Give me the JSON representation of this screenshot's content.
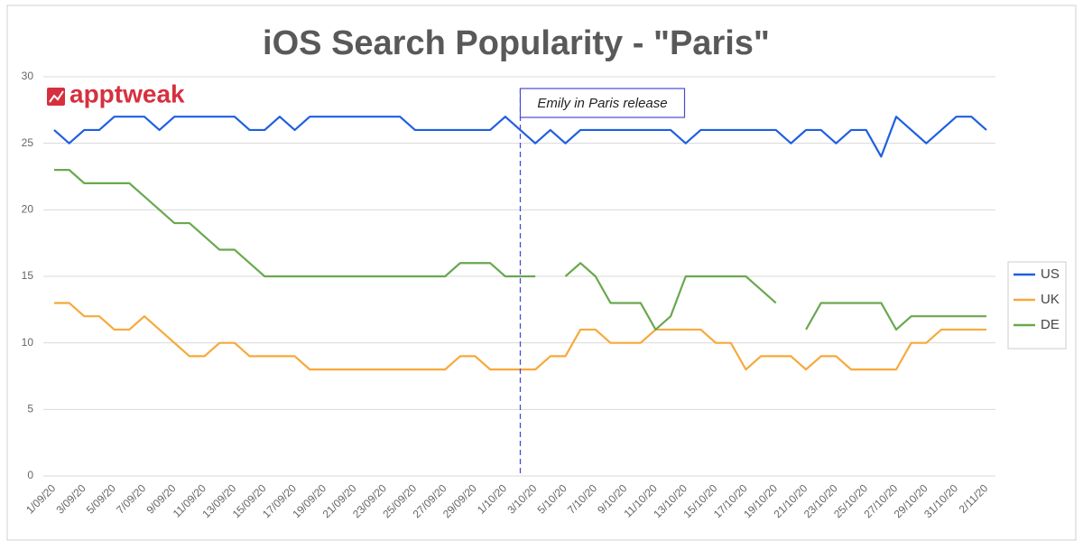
{
  "chart_data": {
    "type": "line",
    "title": "iOS Search Popularity - \"Paris\"",
    "logo": "apptweak",
    "annotation": {
      "text": "Emily in Paris release"
    },
    "categories": [
      "1/09/20",
      null,
      "3/09/20",
      null,
      "5/09/20",
      null,
      "7/09/20",
      null,
      "9/09/20",
      null,
      "11/09/20",
      null,
      "13/09/20",
      null,
      "15/09/20",
      null,
      "17/09/20",
      null,
      "19/09/20",
      null,
      "21/09/20",
      null,
      "23/09/20",
      null,
      "25/09/20",
      null,
      "27/09/20",
      null,
      "29/09/20",
      null,
      "1/10/20",
      null,
      "3/10/20",
      null,
      "5/10/20",
      null,
      "7/10/20",
      null,
      "9/10/20",
      null,
      "11/10/20",
      null,
      "13/10/20",
      null,
      "15/10/20",
      null,
      "17/10/20",
      null,
      "19/10/20",
      null,
      "21/10/20",
      null,
      "23/10/20",
      null,
      "25/10/20",
      null,
      "27/10/20",
      null,
      "29/10/20",
      null,
      "31/10/20",
      null,
      "2/11/20"
    ],
    "series": [
      {
        "name": "US",
        "color": "#1f5fe0",
        "values": [
          26,
          25,
          26,
          26,
          27,
          27,
          27,
          26,
          27,
          27,
          27,
          27,
          27,
          26,
          26,
          27,
          26,
          27,
          27,
          27,
          27,
          27,
          27,
          27,
          26,
          26,
          26,
          26,
          26,
          26,
          27,
          26,
          25,
          26,
          25,
          26,
          26,
          26,
          26,
          26,
          26,
          26,
          25,
          26,
          26,
          26,
          26,
          26,
          26,
          25,
          26,
          26,
          25,
          26,
          26,
          24,
          27,
          26,
          25,
          26,
          27,
          27,
          26
        ]
      },
      {
        "name": "UK",
        "color": "#f7a93b",
        "values": [
          13,
          13,
          12,
          12,
          11,
          11,
          12,
          11,
          10,
          9,
          9,
          10,
          10,
          9,
          9,
          9,
          9,
          8,
          8,
          8,
          8,
          8,
          8,
          8,
          8,
          8,
          8,
          9,
          9,
          8,
          8,
          8,
          8,
          9,
          9,
          11,
          11,
          10,
          10,
          10,
          11,
          11,
          11,
          11,
          10,
          10,
          8,
          9,
          9,
          9,
          8,
          9,
          9,
          8,
          8,
          8,
          8,
          10,
          10,
          11,
          11,
          11,
          11
        ]
      },
      {
        "name": "DE",
        "color": "#6aa84f",
        "values": [
          23,
          23,
          22,
          22,
          22,
          22,
          21,
          20,
          19,
          19,
          18,
          17,
          17,
          16,
          15,
          15,
          15,
          15,
          15,
          15,
          15,
          15,
          15,
          15,
          15,
          15,
          15,
          16,
          16,
          16,
          15,
          15,
          15,
          null,
          15,
          16,
          15,
          13,
          13,
          13,
          11,
          12,
          15,
          15,
          15,
          15,
          15,
          14,
          13,
          null,
          11,
          13,
          13,
          13,
          13,
          13,
          11,
          12,
          12,
          12,
          12,
          12,
          12
        ]
      }
    ],
    "ylim": [
      0,
      30
    ],
    "yticks": [
      0,
      5,
      10,
      15,
      20,
      25,
      30
    ],
    "grid": true,
    "legend": "right"
  }
}
